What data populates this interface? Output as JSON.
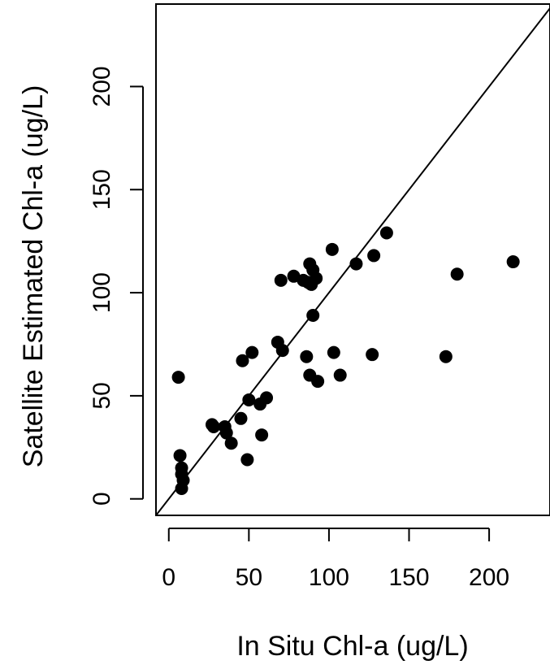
{
  "chart_data": {
    "type": "scatter",
    "title": "",
    "xlabel": "In Situ Chl-a (ug/L)",
    "ylabel": "Satellite Estimated Chl-a (ug/L)",
    "xlim": [
      -8,
      238
    ],
    "ylim": [
      -8,
      240
    ],
    "xticks": [
      0,
      50,
      100,
      150,
      200
    ],
    "yticks": [
      0,
      50,
      100,
      150,
      200
    ],
    "grid": false,
    "reference_line": {
      "type": "1:1",
      "from": [
        -8,
        -8
      ],
      "to": [
        238,
        238
      ]
    },
    "series": [
      {
        "color": "#000000",
        "points": [
          [
            6,
            59
          ],
          [
            7,
            21
          ],
          [
            8,
            15
          ],
          [
            8,
            12
          ],
          [
            9,
            9
          ],
          [
            8,
            5
          ],
          [
            27,
            36
          ],
          [
            28,
            35
          ],
          [
            35,
            35
          ],
          [
            36,
            32
          ],
          [
            39,
            27
          ],
          [
            45,
            39
          ],
          [
            46,
            67
          ],
          [
            49,
            19
          ],
          [
            50,
            48
          ],
          [
            52,
            71
          ],
          [
            57,
            46
          ],
          [
            58,
            31
          ],
          [
            61,
            49
          ],
          [
            68,
            76
          ],
          [
            70,
            106
          ],
          [
            71,
            72
          ],
          [
            78,
            108
          ],
          [
            84,
            106
          ],
          [
            86,
            69
          ],
          [
            87,
            105
          ],
          [
            88,
            114
          ],
          [
            88,
            60
          ],
          [
            89,
            104
          ],
          [
            90,
            89
          ],
          [
            90,
            111
          ],
          [
            92,
            107
          ],
          [
            93,
            57
          ],
          [
            102,
            121
          ],
          [
            103,
            71
          ],
          [
            107,
            60
          ],
          [
            117,
            114
          ],
          [
            127,
            70
          ],
          [
            128,
            118
          ],
          [
            136,
            129
          ],
          [
            173,
            69
          ],
          [
            180,
            109
          ],
          [
            215,
            115
          ]
        ]
      }
    ]
  }
}
